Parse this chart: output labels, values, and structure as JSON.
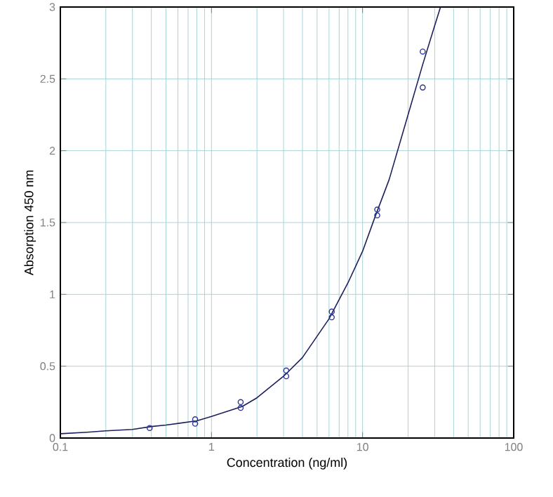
{
  "chart_data": {
    "type": "scatter",
    "xlabel": "Concentration (ng/ml)",
    "ylabel": "Absorption 450 nm",
    "log": "x",
    "grid": true,
    "marker": "circle",
    "xlim": [
      0.1,
      100
    ],
    "ylim": [
      0,
      3
    ],
    "xticks": [
      0.1,
      1,
      10,
      100
    ],
    "yticks": [
      0,
      0.5,
      1,
      1.5,
      2,
      2.5,
      3
    ],
    "series": [
      {
        "color": "#2b3595",
        "x": [
          0.39,
          0.78,
          0.78,
          1.56,
          1.56,
          3.125,
          3.125,
          6.25,
          6.25,
          12.5,
          12.5,
          25,
          25
        ],
        "values": [
          0.07,
          0.1,
          0.13,
          0.21,
          0.25,
          0.43,
          0.47,
          0.84,
          0.88,
          1.55,
          1.59,
          2.44,
          2.69
        ]
      },
      {
        "type": "line",
        "color": "#1c1f5c",
        "marker": "none",
        "line_style": "solid",
        "x": [
          0.1,
          0.15,
          0.2,
          0.3,
          0.4,
          0.5,
          0.8,
          1,
          1.6,
          2,
          3,
          4,
          6,
          8,
          10,
          12,
          15,
          20,
          25,
          30,
          32.8
        ],
        "values": [
          0.03,
          0.04,
          0.05,
          0.06,
          0.08,
          0.09,
          0.12,
          0.15,
          0.22,
          0.28,
          0.43,
          0.56,
          0.83,
          1.08,
          1.3,
          1.53,
          1.8,
          2.25,
          2.6,
          2.87,
          3.0
        ]
      }
    ]
  }
}
